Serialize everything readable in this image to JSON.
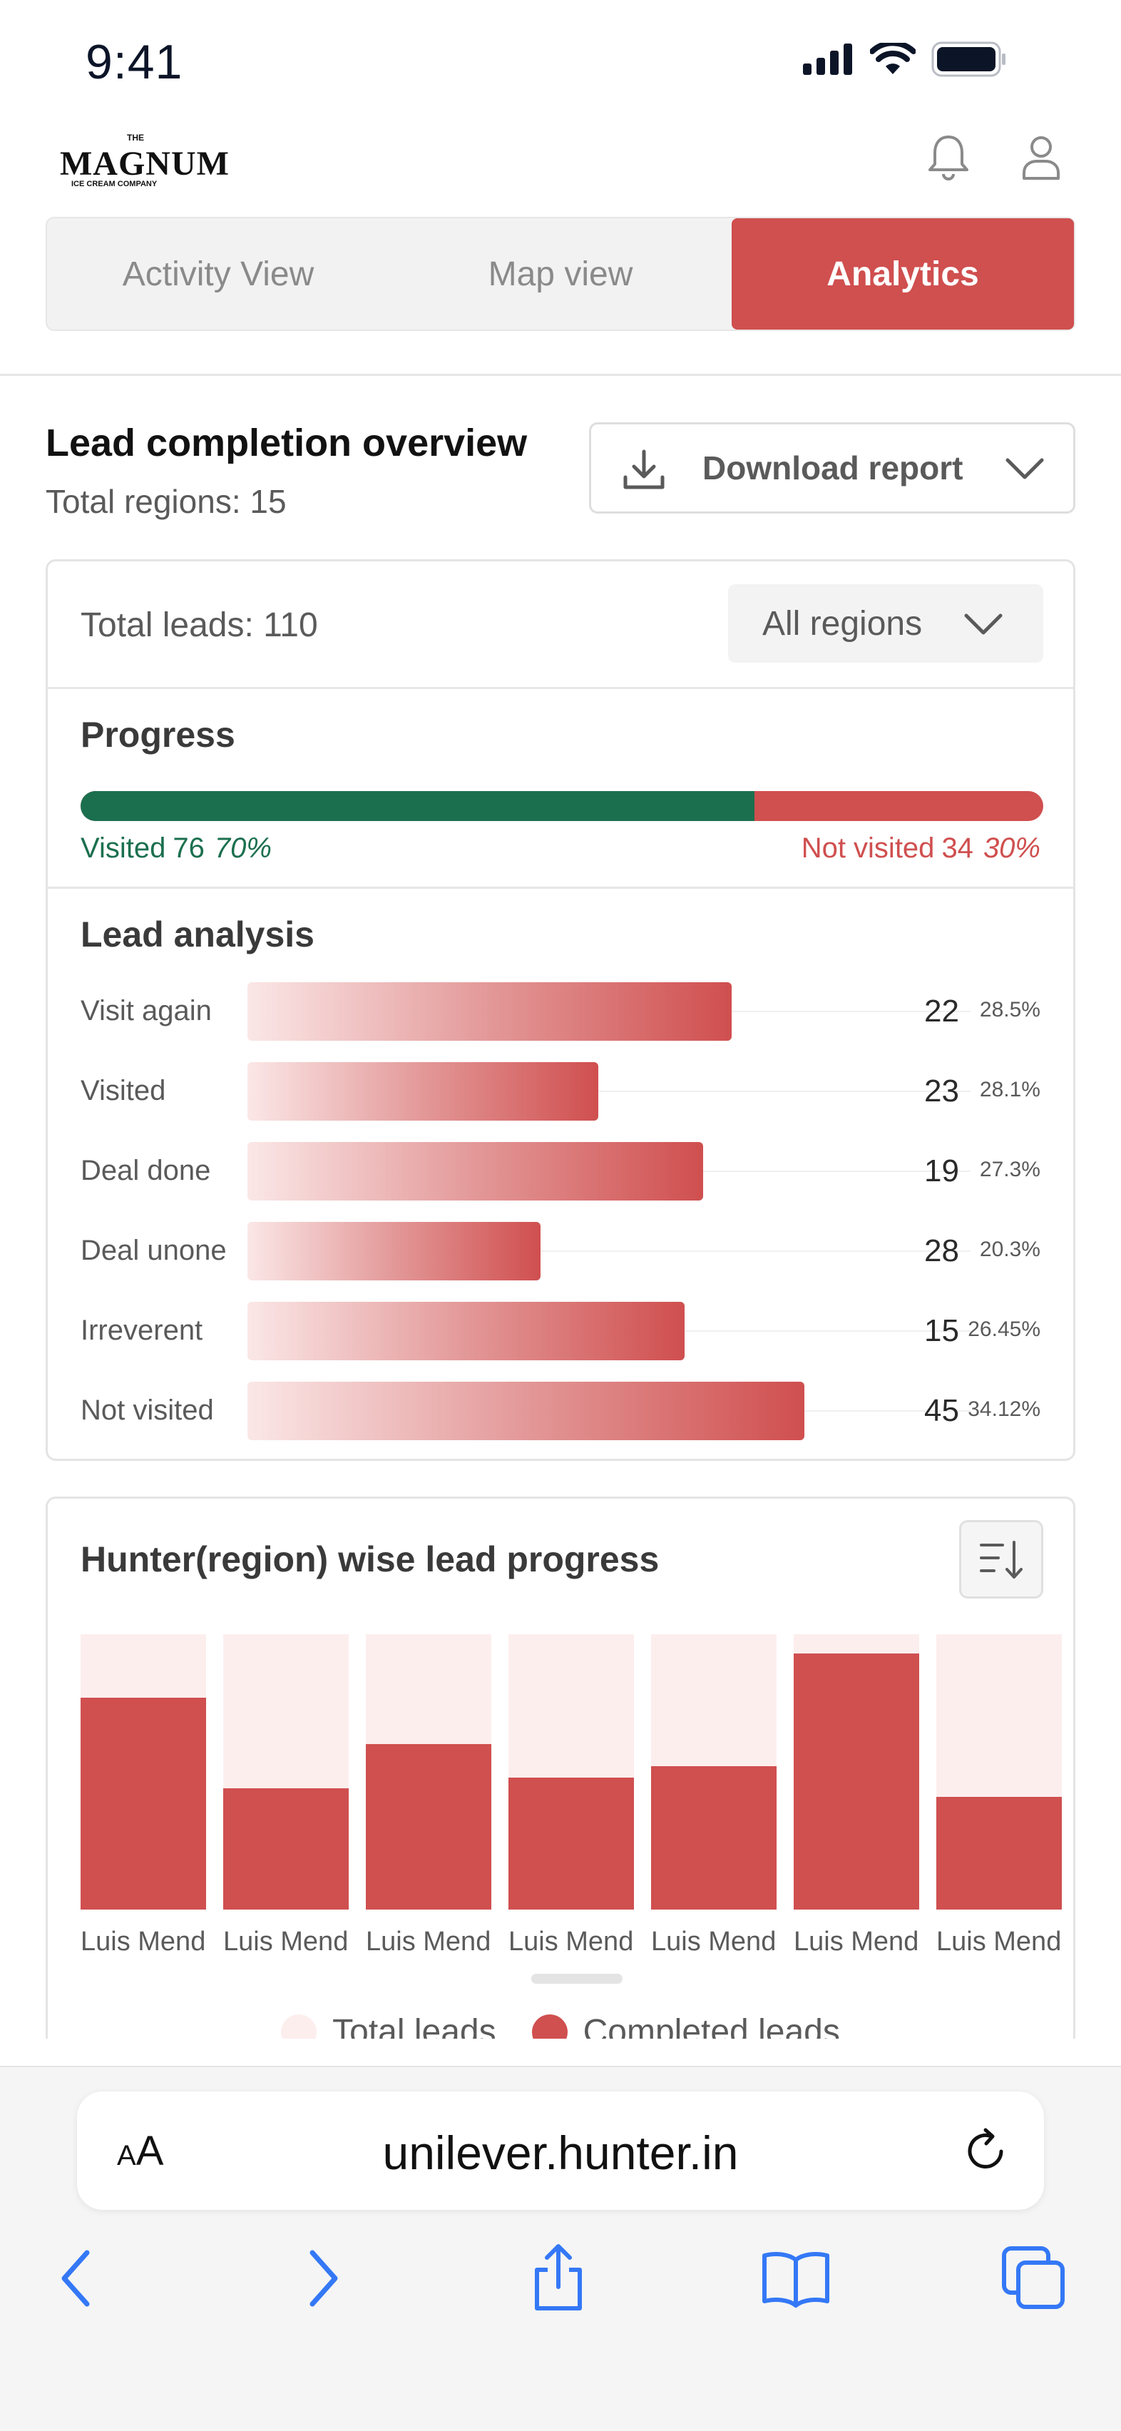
{
  "status": {
    "time": "9:41"
  },
  "header": {
    "logo_the": "THE",
    "logo_brand": "MAGNUM",
    "logo_sub": "ICE CREAM COMPANY"
  },
  "tabs": [
    {
      "label": "Activity View",
      "active": false
    },
    {
      "label": "Map view",
      "active": false
    },
    {
      "label": "Analytics",
      "active": true
    }
  ],
  "overview": {
    "title": "Lead completion overview",
    "subtitle": "Total regions: 15",
    "download_label": "Download report"
  },
  "summary": {
    "total_leads": "Total leads: 110",
    "region_filter": "All regions"
  },
  "progress": {
    "title": "Progress",
    "visited_label": "Visited",
    "visited_count": "76",
    "visited_pct_text": "70%",
    "visited_fraction": 0.7,
    "not_visited_label": "Not visited",
    "not_visited_count": "34",
    "not_visited_pct_text": "30%"
  },
  "lead_analysis": {
    "title": "Lead  analysis",
    "rows": [
      {
        "label": "Visit again",
        "count": "22",
        "pct": "28.5%",
        "bar_fraction": 0.67
      },
      {
        "label": "Visited",
        "count": "23",
        "pct": "28.1%",
        "bar_fraction": 0.485
      },
      {
        "label": "Deal done",
        "count": "19",
        "pct": "27.3%",
        "bar_fraction": 0.63
      },
      {
        "label": "Deal unone",
        "count": "28",
        "pct": "20.3%",
        "bar_fraction": 0.405
      },
      {
        "label": "Irreverent",
        "count": "15",
        "pct": "26.45%",
        "bar_fraction": 0.605
      },
      {
        "label": "Not visited",
        "count": "45",
        "pct": "34.12%",
        "bar_fraction": 0.77
      }
    ]
  },
  "chart_data": {
    "type": "bar",
    "title": "Hunter(region) wise lead progress",
    "categories": [
      "Luis Mend",
      "Luis Mend",
      "Luis Mend",
      "Luis Mend",
      "Luis Mend",
      "Luis Mend",
      "Luis Mend"
    ],
    "series": [
      {
        "name": "Total leads",
        "values": [
          100,
          100,
          100,
          100,
          100,
          100,
          100
        ]
      },
      {
        "name": "Completed leads",
        "values": [
          77,
          44,
          60,
          48,
          52,
          93,
          41
        ]
      }
    ],
    "ylim": [
      0,
      100
    ],
    "legend": "bottom",
    "colors": {
      "total": "#fdeeee",
      "completed": "#d04f4f"
    }
  },
  "browser": {
    "aa_small": "A",
    "aa_large": "A",
    "url": "unilever.hunter.in"
  },
  "colors": {
    "accent": "#d04f4f",
    "visited": "#1b6f4f",
    "ios_blue": "#3478f6"
  }
}
